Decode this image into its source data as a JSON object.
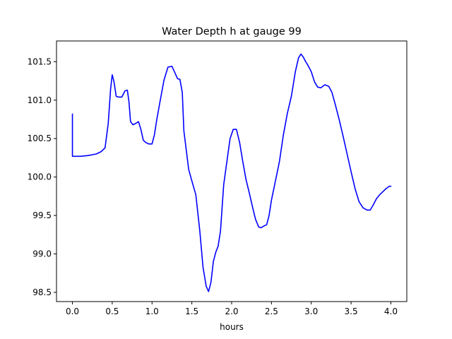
{
  "chart_data": {
    "type": "line",
    "title": "Water Depth h at gauge 99",
    "xlabel": "hours",
    "ylabel": "",
    "xlim": [
      -0.2,
      4.2
    ],
    "ylim": [
      98.38,
      101.77
    ],
    "xticks": [
      0.0,
      0.5,
      1.0,
      1.5,
      2.0,
      2.5,
      3.0,
      3.5,
      4.0
    ],
    "xtick_labels": [
      "0.0",
      "0.5",
      "1.0",
      "1.5",
      "2.0",
      "2.5",
      "3.0",
      "3.5",
      "4.0"
    ],
    "yticks": [
      98.5,
      99.0,
      99.5,
      100.0,
      100.5,
      101.0,
      101.5
    ],
    "ytick_labels": [
      "98.5",
      "99.0",
      "99.5",
      "100.0",
      "100.5",
      "101.0",
      "101.5"
    ],
    "grid": false,
    "line_color": "#0000ff",
    "series": [
      {
        "x": [
          0.0,
          0.0,
          0.0,
          0.1,
          0.2,
          0.3,
          0.36,
          0.41,
          0.45,
          0.48,
          0.5,
          0.52,
          0.55,
          0.58,
          0.62,
          0.66,
          0.69,
          0.71,
          0.73,
          0.76,
          0.8,
          0.83,
          0.86,
          0.89,
          0.92,
          0.96,
          1.0,
          1.03,
          1.06,
          1.1,
          1.15,
          1.2,
          1.25,
          1.29,
          1.32,
          1.35,
          1.38,
          1.4,
          1.43,
          1.46,
          1.5,
          1.55,
          1.6,
          1.64,
          1.68,
          1.71,
          1.74,
          1.77,
          1.8,
          1.83,
          1.86,
          1.9,
          1.94,
          1.98,
          2.02,
          2.06,
          2.1,
          2.14,
          2.18,
          2.22,
          2.26,
          2.3,
          2.34,
          2.37,
          2.4,
          2.44,
          2.47,
          2.5,
          2.55,
          2.6,
          2.65,
          2.7,
          2.75,
          2.8,
          2.84,
          2.87,
          2.9,
          2.93,
          2.96,
          3.0,
          3.04,
          3.08,
          3.12,
          3.17,
          3.22,
          3.26,
          3.3,
          3.35,
          3.4,
          3.45,
          3.5,
          3.55,
          3.6,
          3.65,
          3.7,
          3.74,
          3.78,
          3.82,
          3.86,
          3.9,
          3.94,
          3.98,
          4.0
        ],
        "y": [
          100.82,
          100.38,
          100.27,
          100.27,
          100.28,
          100.3,
          100.33,
          100.38,
          100.7,
          101.15,
          101.33,
          101.25,
          101.05,
          101.04,
          101.04,
          101.12,
          101.13,
          100.98,
          100.72,
          100.68,
          100.7,
          100.72,
          100.62,
          100.48,
          100.45,
          100.43,
          100.43,
          100.55,
          100.75,
          100.98,
          101.26,
          101.43,
          101.44,
          101.35,
          101.28,
          101.27,
          101.1,
          100.6,
          100.35,
          100.1,
          99.95,
          99.77,
          99.3,
          98.83,
          98.58,
          98.51,
          98.63,
          98.9,
          99.02,
          99.1,
          99.3,
          99.9,
          100.2,
          100.5,
          100.62,
          100.62,
          100.45,
          100.2,
          99.97,
          99.8,
          99.62,
          99.45,
          99.35,
          99.34,
          99.36,
          99.38,
          99.5,
          99.7,
          99.95,
          100.2,
          100.55,
          100.83,
          101.05,
          101.37,
          101.55,
          101.6,
          101.56,
          101.5,
          101.45,
          101.37,
          101.24,
          101.17,
          101.16,
          101.2,
          101.18,
          101.1,
          100.95,
          100.75,
          100.53,
          100.3,
          100.07,
          99.85,
          99.68,
          99.6,
          99.57,
          99.57,
          99.64,
          99.72,
          99.77,
          99.81,
          99.85,
          99.88,
          99.88
        ]
      }
    ]
  }
}
